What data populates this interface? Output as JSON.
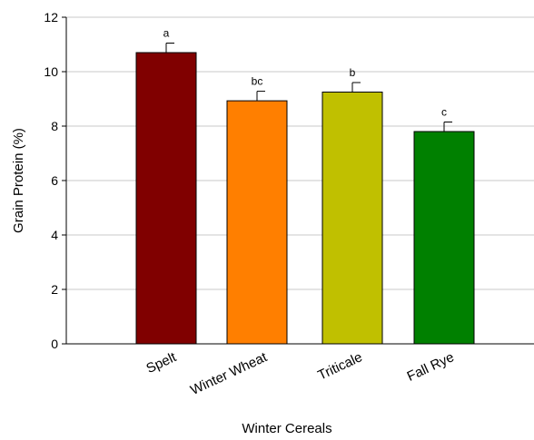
{
  "chart_data": {
    "type": "bar",
    "title": "",
    "xlabel": "Winter Cereals",
    "ylabel": "Grain Protein (%)",
    "ylim": [
      0,
      12
    ],
    "yticks": [
      0,
      2,
      4,
      6,
      8,
      10,
      12
    ],
    "categories": [
      "Spelt",
      "Winter Wheat",
      "Triticale",
      "Fall Rye"
    ],
    "values": [
      10.7,
      8.93,
      9.25,
      7.8
    ],
    "errors": [
      0.35,
      0.35,
      0.35,
      0.35
    ],
    "significance_letters": [
      "a",
      "bc",
      "b",
      "c"
    ],
    "colors": [
      "#800000",
      "#ff7f00",
      "#c0c000",
      "#008000"
    ],
    "grid": "horizontal",
    "legend": "none"
  }
}
